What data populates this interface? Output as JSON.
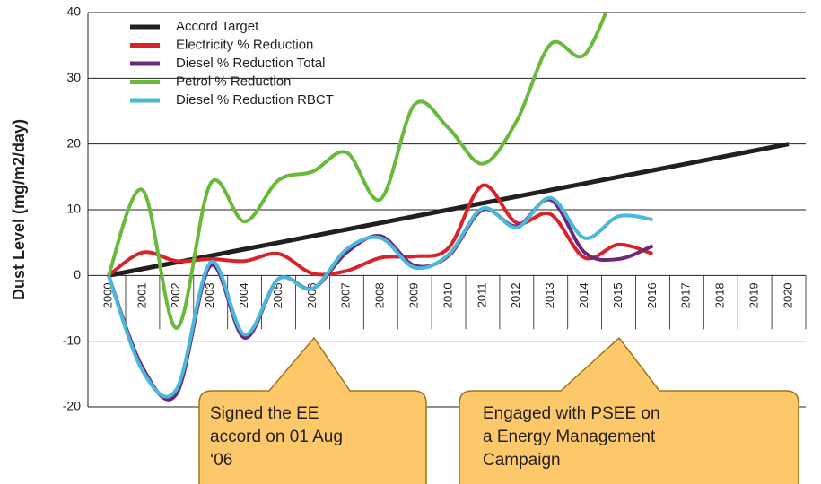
{
  "chart_data": {
    "type": "line",
    "y_label": "Dust Level (mg/m2/day)",
    "categories": [
      "2000",
      "2001",
      "2002",
      "2003",
      "2004",
      "2005",
      "2006",
      "2007",
      "2008",
      "2009",
      "2010",
      "2011",
      "2012",
      "2013",
      "2014",
      "2015",
      "2016",
      "2017",
      "2018",
      "2019",
      "2020"
    ],
    "ylim": [
      -20,
      40
    ],
    "yticks": [
      -20,
      -10,
      0,
      10,
      20,
      30,
      40
    ],
    "grid": true,
    "legend": "top-left",
    "smooth": true,
    "series": [
      {
        "name": "Accord Target",
        "color": "#231f20",
        "smooth": false,
        "values": [
          0,
          1,
          2,
          3,
          4,
          5,
          6,
          7,
          8,
          9,
          10,
          11,
          12,
          13,
          14,
          15,
          16,
          17,
          18,
          19,
          20
        ]
      },
      {
        "name": "Electricity % Reduction",
        "color": "#d7242b",
        "values": [
          0,
          3.5,
          2.2,
          2.5,
          2.2,
          3.3,
          0.3,
          0.7,
          2.7,
          2.9,
          4.2,
          13.7,
          8.0,
          9.3,
          2.7,
          4.7,
          3.3,
          null,
          null,
          null,
          null
        ]
      },
      {
        "name": "Diesel % Reduction Total",
        "color": "#6a2a7c",
        "values": [
          0,
          -14,
          -18,
          1.5,
          -9.5,
          -0.5,
          -2,
          3.5,
          6,
          1.5,
          3,
          10,
          7.5,
          11.5,
          3.5,
          2.5,
          4.5,
          null,
          null,
          null,
          null
        ]
      },
      {
        "name": "Petrol % Reduction",
        "color": "#6ab93b",
        "values": [
          0,
          13,
          -8,
          14,
          8.2,
          14.5,
          15.8,
          18.7,
          11.6,
          26,
          22.4,
          17,
          23.5,
          35.2,
          33.6,
          45,
          null,
          null,
          null,
          null,
          null
        ]
      },
      {
        "name": "Diesel % Reduction RBCT",
        "color": "#4ab8d8",
        "values": [
          0,
          -14.5,
          -17.3,
          2,
          -9,
          -0.5,
          -2,
          4,
          5.7,
          1.2,
          3.2,
          10.2,
          7.3,
          11.8,
          5.7,
          9,
          8.5,
          null,
          null,
          null,
          null
        ]
      }
    ],
    "annotations": [
      {
        "lines": [
          "Signed the EE",
          "accord on 01 Aug",
          "‘06"
        ]
      },
      {
        "lines": [
          "Engaged with PSEE on",
          "a Energy Management",
          "Campaign"
        ]
      }
    ]
  }
}
